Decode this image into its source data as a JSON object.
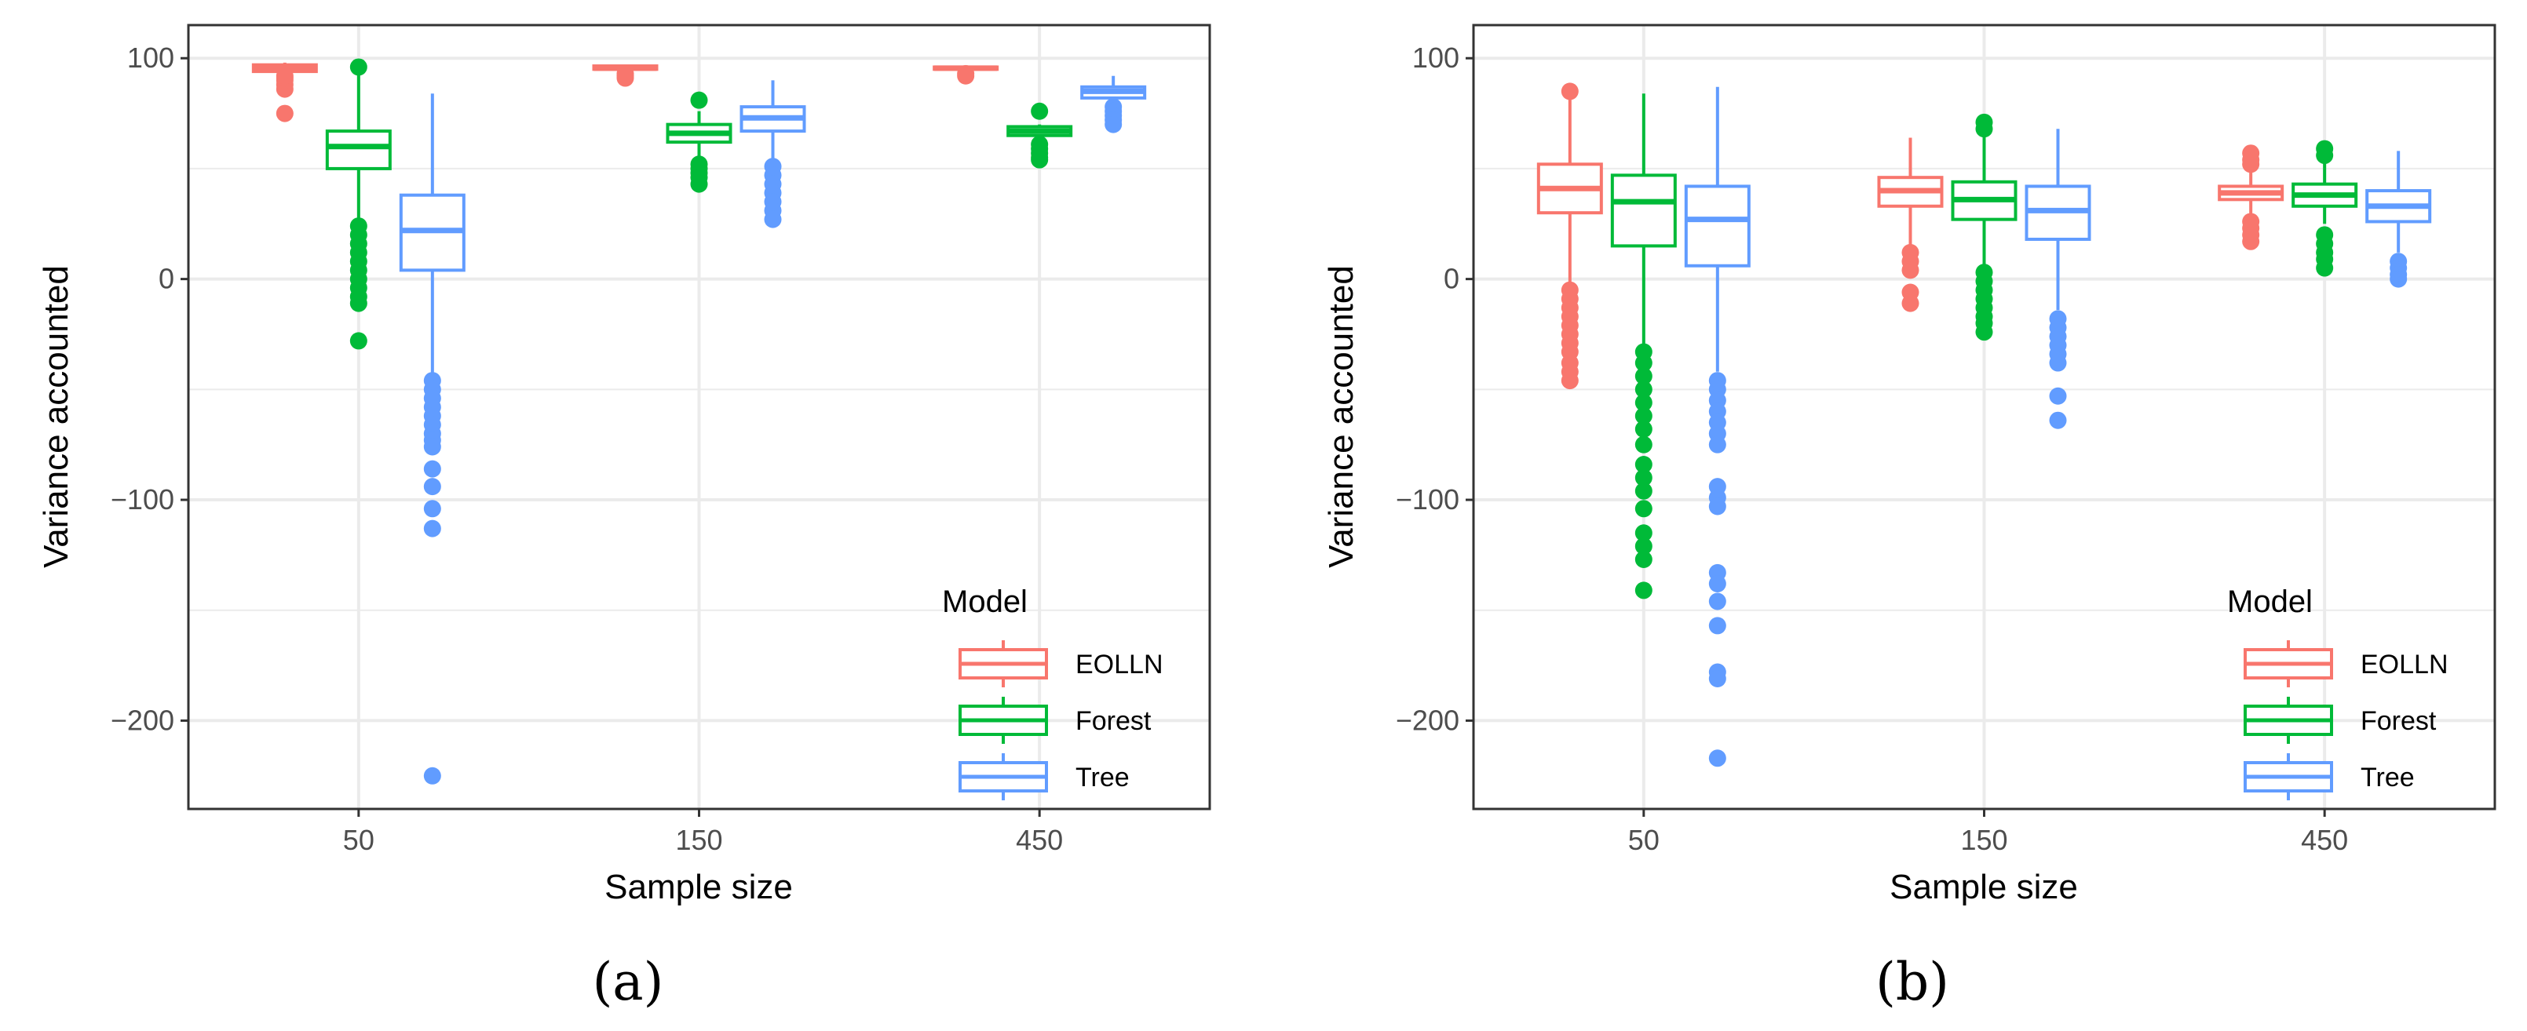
{
  "colors": {
    "EOLLN": "#F8766D",
    "Forest": "#00BA38",
    "Tree": "#619CFF"
  },
  "legend": {
    "title": "Model",
    "entries": [
      "EOLLN",
      "Forest",
      "Tree"
    ]
  },
  "chart_data": [
    {
      "type": "boxplot",
      "panel_label": "(a)",
      "xlabel": "Sample size",
      "ylabel": "Variance accounted",
      "categories": [
        "50",
        "150",
        "450"
      ],
      "ylim": [
        -240,
        115
      ],
      "yticks": [
        100,
        0,
        -100,
        -200
      ],
      "ytick_labels": [
        "100",
        "0",
        "−100",
        "−200"
      ],
      "legend_position": "bottom-right",
      "series": [
        {
          "name": "EOLLN",
          "boxes": [
            {
              "category": "50",
              "min": 94,
              "q1": 94,
              "median": 95.5,
              "q3": 97,
              "max": 98,
              "outliers": [
                75,
                86,
                88,
                90,
                91,
                92
              ]
            },
            {
              "category": "150",
              "min": 94,
              "q1": 95,
              "median": 95.5,
              "q3": 96.5,
              "max": 97,
              "outliers": [
                91,
                92,
                93
              ]
            },
            {
              "category": "450",
              "min": 94,
              "q1": 95,
              "median": 95.5,
              "q3": 96,
              "max": 96.5,
              "outliers": [
                92,
                93
              ]
            }
          ]
        },
        {
          "name": "Forest",
          "boxes": [
            {
              "category": "50",
              "min": 26,
              "q1": 50,
              "median": 60,
              "q3": 67,
              "max": 97,
              "outliers": [
                96,
                24,
                20,
                16,
                12,
                8,
                4,
                0,
                -4,
                -8,
                -11,
                -28
              ]
            },
            {
              "category": "150",
              "min": 53,
              "q1": 62,
              "median": 66,
              "q3": 70,
              "max": 76,
              "outliers": [
                81,
                52,
                50,
                48,
                46,
                43
              ]
            },
            {
              "category": "450",
              "min": 63,
              "q1": 65,
              "median": 67,
              "q3": 69,
              "max": 70,
              "outliers": [
                76,
                61,
                59,
                57,
                55,
                54
              ]
            }
          ]
        },
        {
          "name": "Tree",
          "boxes": [
            {
              "category": "50",
              "min": -43,
              "q1": 4,
              "median": 22,
              "q3": 38,
              "max": 84,
              "outliers": [
                -46,
                -50,
                -54,
                -58,
                -62,
                -66,
                -70,
                -73,
                -76,
                -86,
                -94,
                -104,
                -113,
                -225
              ]
            },
            {
              "category": "150",
              "min": 52,
              "q1": 67,
              "median": 73,
              "q3": 78,
              "max": 90,
              "outliers": [
                51,
                47,
                43,
                39,
                35,
                31,
                27
              ]
            },
            {
              "category": "450",
              "min": 79,
              "q1": 82,
              "median": 85,
              "q3": 87,
              "max": 92,
              "outliers": [
                78,
                76,
                74,
                72,
                70
              ]
            }
          ]
        }
      ]
    },
    {
      "type": "boxplot",
      "panel_label": "(b)",
      "xlabel": "Sample size",
      "ylabel": "Variance accounted",
      "categories": [
        "50",
        "150",
        "450"
      ],
      "ylim": [
        -240,
        115
      ],
      "yticks": [
        100,
        0,
        -100,
        -200
      ],
      "ytick_labels": [
        "100",
        "0",
        "−100",
        "−200"
      ],
      "legend_position": "bottom-right",
      "series": [
        {
          "name": "EOLLN",
          "boxes": [
            {
              "category": "50",
              "min": -3,
              "q1": 30,
              "median": 41,
              "q3": 52,
              "max": 84,
              "outliers": [
                85,
                -5,
                -9,
                -13,
                -17,
                -21,
                -25,
                -29,
                -33,
                -38,
                -42,
                -46
              ]
            },
            {
              "category": "150",
              "min": 15,
              "q1": 33,
              "median": 40,
              "q3": 46,
              "max": 64,
              "outliers": [
                12,
                8,
                4,
                -6,
                -11
              ]
            },
            {
              "category": "450",
              "min": 28,
              "q1": 36,
              "median": 39,
              "q3": 42,
              "max": 50,
              "outliers": [
                57,
                54,
                52,
                26,
                23,
                20,
                17
              ]
            }
          ]
        },
        {
          "name": "Forest",
          "boxes": [
            {
              "category": "50",
              "min": -30,
              "q1": 15,
              "median": 35,
              "q3": 47,
              "max": 84,
              "outliers": [
                -33,
                -38,
                -44,
                -50,
                -56,
                -62,
                -68,
                -75,
                -84,
                -90,
                -96,
                -104,
                -115,
                -121,
                -127,
                -141
              ]
            },
            {
              "category": "150",
              "min": 6,
              "q1": 27,
              "median": 36,
              "q3": 44,
              "max": 66,
              "outliers": [
                71,
                68,
                3,
                -1,
                -5,
                -9,
                -13,
                -17,
                -20,
                -24
              ]
            },
            {
              "category": "450",
              "min": 25,
              "q1": 33,
              "median": 38,
              "q3": 43,
              "max": 53,
              "outliers": [
                59,
                56,
                20,
                16,
                12,
                9,
                5
              ]
            }
          ]
        },
        {
          "name": "Tree",
          "boxes": [
            {
              "category": "50",
              "min": -42,
              "q1": 6,
              "median": 27,
              "q3": 42,
              "max": 87,
              "outliers": [
                -46,
                -50,
                -55,
                -60,
                -65,
                -70,
                -75,
                -94,
                -99,
                -103,
                -133,
                -138,
                -146,
                -157,
                -178,
                -181,
                -217
              ]
            },
            {
              "category": "150",
              "min": -14,
              "q1": 18,
              "median": 31,
              "q3": 42,
              "max": 68,
              "outliers": [
                -18,
                -22,
                -26,
                -30,
                -34,
                -38,
                -53,
                -64
              ]
            },
            {
              "category": "450",
              "min": 12,
              "q1": 26,
              "median": 33,
              "q3": 40,
              "max": 58,
              "outliers": [
                8,
                5,
                2,
                0
              ]
            }
          ]
        }
      ]
    }
  ]
}
